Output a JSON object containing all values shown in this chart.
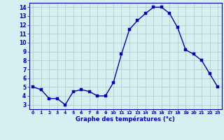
{
  "hours": [
    0,
    1,
    2,
    3,
    4,
    5,
    6,
    7,
    8,
    9,
    10,
    11,
    12,
    13,
    14,
    15,
    16,
    17,
    18,
    19,
    20,
    21,
    22,
    23
  ],
  "temperatures": [
    5.0,
    4.7,
    3.7,
    3.7,
    3.0,
    4.5,
    4.7,
    4.5,
    4.0,
    4.0,
    5.5,
    8.7,
    11.5,
    12.5,
    13.3,
    14.0,
    14.0,
    13.3,
    11.7,
    9.2,
    8.7,
    8.0,
    6.5,
    5.0
  ],
  "line_color": "#0000bb",
  "marker_color": "#0000bb",
  "bg_color": "#d4f0f0",
  "grid_color": "#a8c8c8",
  "axis_label_color": "#0000bb",
  "tick_label_color": "#0000bb",
  "xlabel": "Graphe des températures (°c)",
  "ylim": [
    2.5,
    14.5
  ],
  "xlim": [
    -0.5,
    23.5
  ],
  "yticks": [
    3,
    4,
    5,
    6,
    7,
    8,
    9,
    10,
    11,
    12,
    13,
    14
  ],
  "xticks": [
    0,
    1,
    2,
    3,
    4,
    5,
    6,
    7,
    8,
    9,
    10,
    11,
    12,
    13,
    14,
    15,
    16,
    17,
    18,
    19,
    20,
    21,
    22,
    23
  ],
  "marker_size": 2.5,
  "line_width": 1.0
}
